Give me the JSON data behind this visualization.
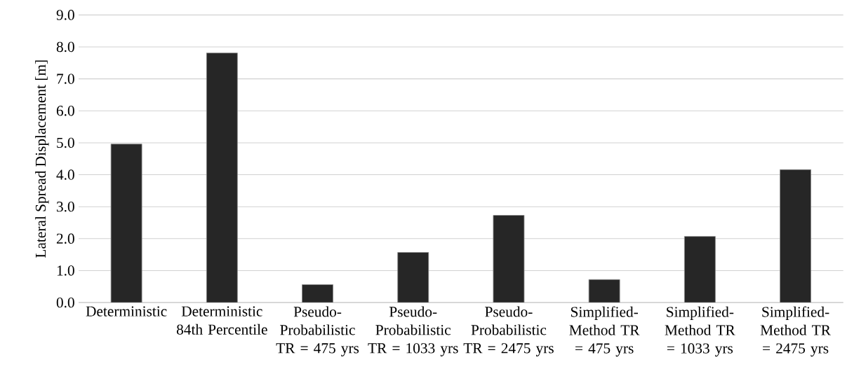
{
  "chart_data": {
    "type": "bar",
    "ylabel": "Lateral Spread Displacement [m]",
    "categories": [
      "Deterministic",
      "Deterministic 84th Percentile",
      "Pseudo-Probabilistic TR = 475 yrs",
      "Pseudo-Probabilistic TR = 1033 yrs",
      "Pseudo-Probabilistic TR = 2475 yrs",
      "Simplified-Method TR = 475 yrs",
      "Simplified-Method TR = 1033 yrs",
      "Simplified-Method TR = 2475 yrs"
    ],
    "values": [
      4.96,
      7.81,
      0.56,
      1.57,
      2.73,
      0.72,
      2.07,
      4.16
    ],
    "color": "#262626",
    "ylim": [
      0,
      9
    ],
    "yticks": [
      {
        "value": 0,
        "label": "0.0"
      },
      {
        "value": 1,
        "label": "1.0"
      },
      {
        "value": 2,
        "label": "2.0"
      },
      {
        "value": 3,
        "label": "3.0"
      },
      {
        "value": 4,
        "label": "4.0"
      },
      {
        "value": 5,
        "label": "5.0"
      },
      {
        "value": 6,
        "label": "6.0"
      },
      {
        "value": 7,
        "label": "7.0"
      },
      {
        "value": 8,
        "label": "8.0"
      },
      {
        "value": 9,
        "label": "9.0"
      }
    ],
    "grid": "y"
  }
}
